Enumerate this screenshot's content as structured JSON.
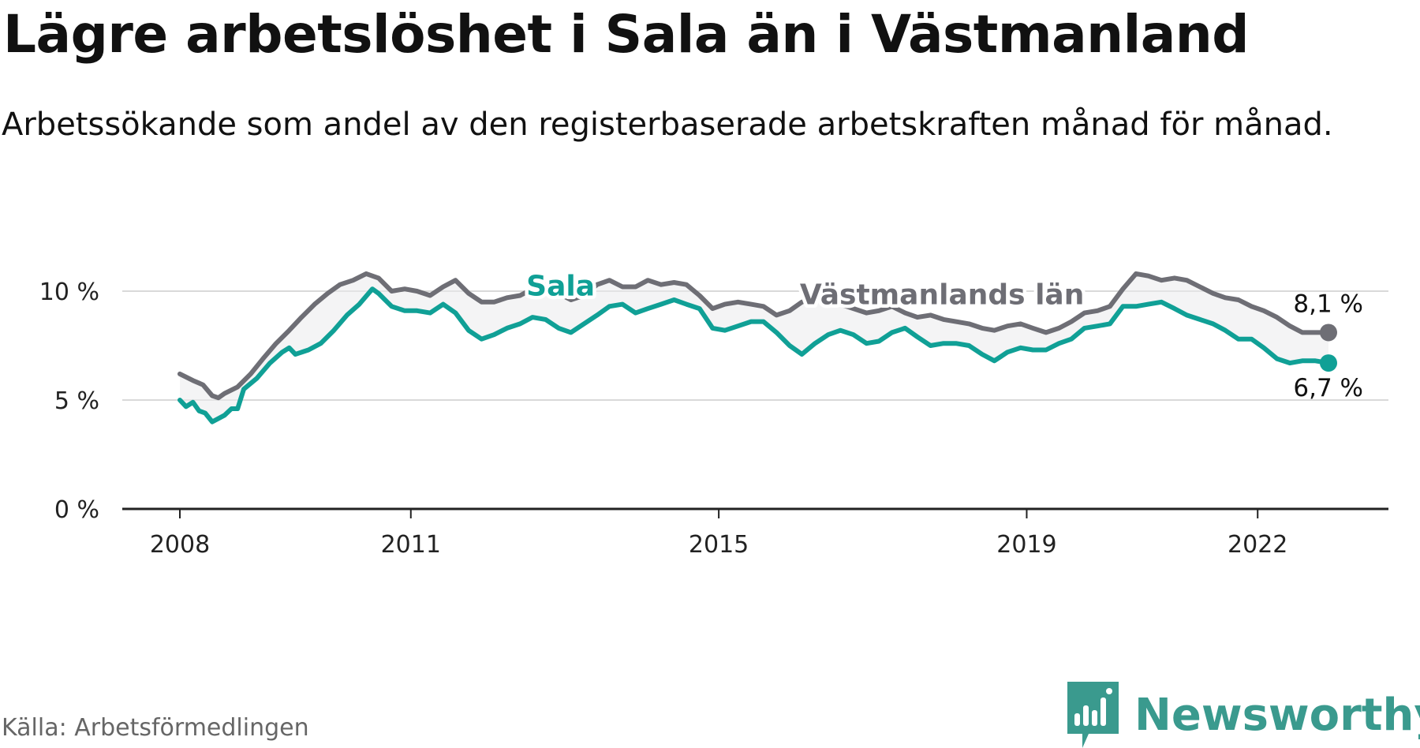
{
  "title": "Lägre arbetslöshet i Sala än i Västmanland",
  "subtitle": "Arbetssökande som andel av den registerbaserade arbetskraften månad för månad.",
  "source": "Källa: Arbetsförmedlingen",
  "brand": {
    "name": "Newsworthy",
    "color": "#3a9a8e"
  },
  "chart_data": {
    "type": "line",
    "title": "Lägre arbetslöshet i Sala än i Västmanland",
    "ylabel": "",
    "xlabel": "",
    "ylim": [
      0,
      10.8
    ],
    "xlim": [
      2007.3,
      2023.6
    ],
    "y_ticks": [
      0,
      5,
      10
    ],
    "y_tick_labels": [
      "0 %",
      "5 %",
      "10 %"
    ],
    "x_ticks": [
      2008,
      2011,
      2015,
      2019,
      2022
    ],
    "x_tick_labels": [
      "2008",
      "2011",
      "2015",
      "2019",
      "2022"
    ],
    "grid": true,
    "series": [
      {
        "name": "Västmanlands län",
        "color": "#6e6e75",
        "label_at": [
          2017.9,
          9.4
        ],
        "end_label": "8,1 %",
        "end_value": 8.1,
        "points": [
          [
            2008.0,
            6.2
          ],
          [
            2008.17,
            5.9
          ],
          [
            2008.3,
            5.7
          ],
          [
            2008.42,
            5.2
          ],
          [
            2008.5,
            5.1
          ],
          [
            2008.58,
            5.3
          ],
          [
            2008.75,
            5.6
          ],
          [
            2008.92,
            6.2
          ],
          [
            2009.08,
            6.9
          ],
          [
            2009.25,
            7.6
          ],
          [
            2009.42,
            8.2
          ],
          [
            2009.58,
            8.8
          ],
          [
            2009.75,
            9.4
          ],
          [
            2009.92,
            9.9
          ],
          [
            2010.08,
            10.3
          ],
          [
            2010.25,
            10.5
          ],
          [
            2010.42,
            10.8
          ],
          [
            2010.58,
            10.6
          ],
          [
            2010.75,
            10.0
          ],
          [
            2010.92,
            10.1
          ],
          [
            2011.08,
            10.0
          ],
          [
            2011.25,
            9.8
          ],
          [
            2011.42,
            10.2
          ],
          [
            2011.58,
            10.5
          ],
          [
            2011.75,
            9.9
          ],
          [
            2011.92,
            9.5
          ],
          [
            2012.08,
            9.5
          ],
          [
            2012.25,
            9.7
          ],
          [
            2012.42,
            9.8
          ],
          [
            2012.58,
            10.1
          ],
          [
            2012.75,
            10.3
          ],
          [
            2012.92,
            9.9
          ],
          [
            2013.08,
            9.6
          ],
          [
            2013.25,
            9.8
          ],
          [
            2013.42,
            10.3
          ],
          [
            2013.58,
            10.5
          ],
          [
            2013.75,
            10.2
          ],
          [
            2013.92,
            10.2
          ],
          [
            2014.08,
            10.5
          ],
          [
            2014.25,
            10.3
          ],
          [
            2014.42,
            10.4
          ],
          [
            2014.58,
            10.3
          ],
          [
            2014.75,
            9.8
          ],
          [
            2014.92,
            9.2
          ],
          [
            2015.08,
            9.4
          ],
          [
            2015.25,
            9.5
          ],
          [
            2015.42,
            9.4
          ],
          [
            2015.58,
            9.3
          ],
          [
            2015.75,
            8.9
          ],
          [
            2015.92,
            9.1
          ],
          [
            2016.08,
            9.5
          ],
          [
            2016.25,
            9.7
          ],
          [
            2016.42,
            9.6
          ],
          [
            2016.58,
            9.4
          ],
          [
            2016.75,
            9.2
          ],
          [
            2016.92,
            9.0
          ],
          [
            2017.08,
            9.1
          ],
          [
            2017.25,
            9.3
          ],
          [
            2017.42,
            9.0
          ],
          [
            2017.58,
            8.8
          ],
          [
            2017.75,
            8.9
          ],
          [
            2017.92,
            8.7
          ],
          [
            2018.08,
            8.6
          ],
          [
            2018.25,
            8.5
          ],
          [
            2018.42,
            8.3
          ],
          [
            2018.58,
            8.2
          ],
          [
            2018.75,
            8.4
          ],
          [
            2018.92,
            8.5
          ],
          [
            2019.08,
            8.3
          ],
          [
            2019.25,
            8.1
          ],
          [
            2019.42,
            8.3
          ],
          [
            2019.58,
            8.6
          ],
          [
            2019.75,
            9.0
          ],
          [
            2019.92,
            9.1
          ],
          [
            2020.08,
            9.3
          ],
          [
            2020.25,
            10.1
          ],
          [
            2020.42,
            10.8
          ],
          [
            2020.58,
            10.7
          ],
          [
            2020.75,
            10.5
          ],
          [
            2020.92,
            10.6
          ],
          [
            2021.08,
            10.5
          ],
          [
            2021.25,
            10.2
          ],
          [
            2021.42,
            9.9
          ],
          [
            2021.58,
            9.7
          ],
          [
            2021.75,
            9.6
          ],
          [
            2021.92,
            9.3
          ],
          [
            2022.08,
            9.1
          ],
          [
            2022.25,
            8.8
          ],
          [
            2022.42,
            8.4
          ],
          [
            2022.58,
            8.1
          ],
          [
            2022.75,
            8.1
          ],
          [
            2022.92,
            8.1
          ]
        ]
      },
      {
        "name": "Sala",
        "color": "#10a096",
        "label_at": [
          2012.5,
          9.8
        ],
        "end_label": "6,7 %",
        "end_value": 6.7,
        "points": [
          [
            2008.0,
            5.0
          ],
          [
            2008.08,
            4.7
          ],
          [
            2008.17,
            4.9
          ],
          [
            2008.25,
            4.5
          ],
          [
            2008.33,
            4.4
          ],
          [
            2008.42,
            4.0
          ],
          [
            2008.58,
            4.3
          ],
          [
            2008.67,
            4.6
          ],
          [
            2008.75,
            4.6
          ],
          [
            2008.83,
            5.5
          ],
          [
            2009.0,
            6.0
          ],
          [
            2009.17,
            6.7
          ],
          [
            2009.33,
            7.2
          ],
          [
            2009.42,
            7.4
          ],
          [
            2009.5,
            7.1
          ],
          [
            2009.67,
            7.3
          ],
          [
            2009.83,
            7.6
          ],
          [
            2010.0,
            8.2
          ],
          [
            2010.17,
            8.9
          ],
          [
            2010.33,
            9.4
          ],
          [
            2010.5,
            10.1
          ],
          [
            2010.58,
            9.9
          ],
          [
            2010.75,
            9.3
          ],
          [
            2010.92,
            9.1
          ],
          [
            2011.08,
            9.1
          ],
          [
            2011.25,
            9.0
          ],
          [
            2011.42,
            9.4
          ],
          [
            2011.58,
            9.0
          ],
          [
            2011.75,
            8.2
          ],
          [
            2011.92,
            7.8
          ],
          [
            2012.08,
            8.0
          ],
          [
            2012.25,
            8.3
          ],
          [
            2012.42,
            8.5
          ],
          [
            2012.58,
            8.8
          ],
          [
            2012.75,
            8.7
          ],
          [
            2012.92,
            8.3
          ],
          [
            2013.08,
            8.1
          ],
          [
            2013.25,
            8.5
          ],
          [
            2013.42,
            8.9
          ],
          [
            2013.58,
            9.3
          ],
          [
            2013.75,
            9.4
          ],
          [
            2013.92,
            9.0
          ],
          [
            2014.08,
            9.2
          ],
          [
            2014.25,
            9.4
          ],
          [
            2014.42,
            9.6
          ],
          [
            2014.58,
            9.4
          ],
          [
            2014.75,
            9.2
          ],
          [
            2014.92,
            8.3
          ],
          [
            2015.08,
            8.2
          ],
          [
            2015.25,
            8.4
          ],
          [
            2015.42,
            8.6
          ],
          [
            2015.58,
            8.6
          ],
          [
            2015.75,
            8.1
          ],
          [
            2015.92,
            7.5
          ],
          [
            2016.08,
            7.1
          ],
          [
            2016.25,
            7.6
          ],
          [
            2016.42,
            8.0
          ],
          [
            2016.58,
            8.2
          ],
          [
            2016.75,
            8.0
          ],
          [
            2016.92,
            7.6
          ],
          [
            2017.08,
            7.7
          ],
          [
            2017.25,
            8.1
          ],
          [
            2017.42,
            8.3
          ],
          [
            2017.58,
            7.9
          ],
          [
            2017.75,
            7.5
          ],
          [
            2017.92,
            7.6
          ],
          [
            2018.08,
            7.6
          ],
          [
            2018.25,
            7.5
          ],
          [
            2018.42,
            7.1
          ],
          [
            2018.58,
            6.8
          ],
          [
            2018.75,
            7.2
          ],
          [
            2018.92,
            7.4
          ],
          [
            2019.08,
            7.3
          ],
          [
            2019.25,
            7.3
          ],
          [
            2019.42,
            7.6
          ],
          [
            2019.58,
            7.8
          ],
          [
            2019.75,
            8.3
          ],
          [
            2019.92,
            8.4
          ],
          [
            2020.08,
            8.5
          ],
          [
            2020.25,
            9.3
          ],
          [
            2020.42,
            9.3
          ],
          [
            2020.58,
            9.4
          ],
          [
            2020.75,
            9.5
          ],
          [
            2020.92,
            9.2
          ],
          [
            2021.08,
            8.9
          ],
          [
            2021.25,
            8.7
          ],
          [
            2021.42,
            8.5
          ],
          [
            2021.58,
            8.2
          ],
          [
            2021.75,
            7.8
          ],
          [
            2021.92,
            7.8
          ],
          [
            2022.08,
            7.4
          ],
          [
            2022.25,
            6.9
          ],
          [
            2022.42,
            6.7
          ],
          [
            2022.58,
            6.8
          ],
          [
            2022.75,
            6.8
          ],
          [
            2022.92,
            6.7
          ]
        ]
      }
    ]
  }
}
